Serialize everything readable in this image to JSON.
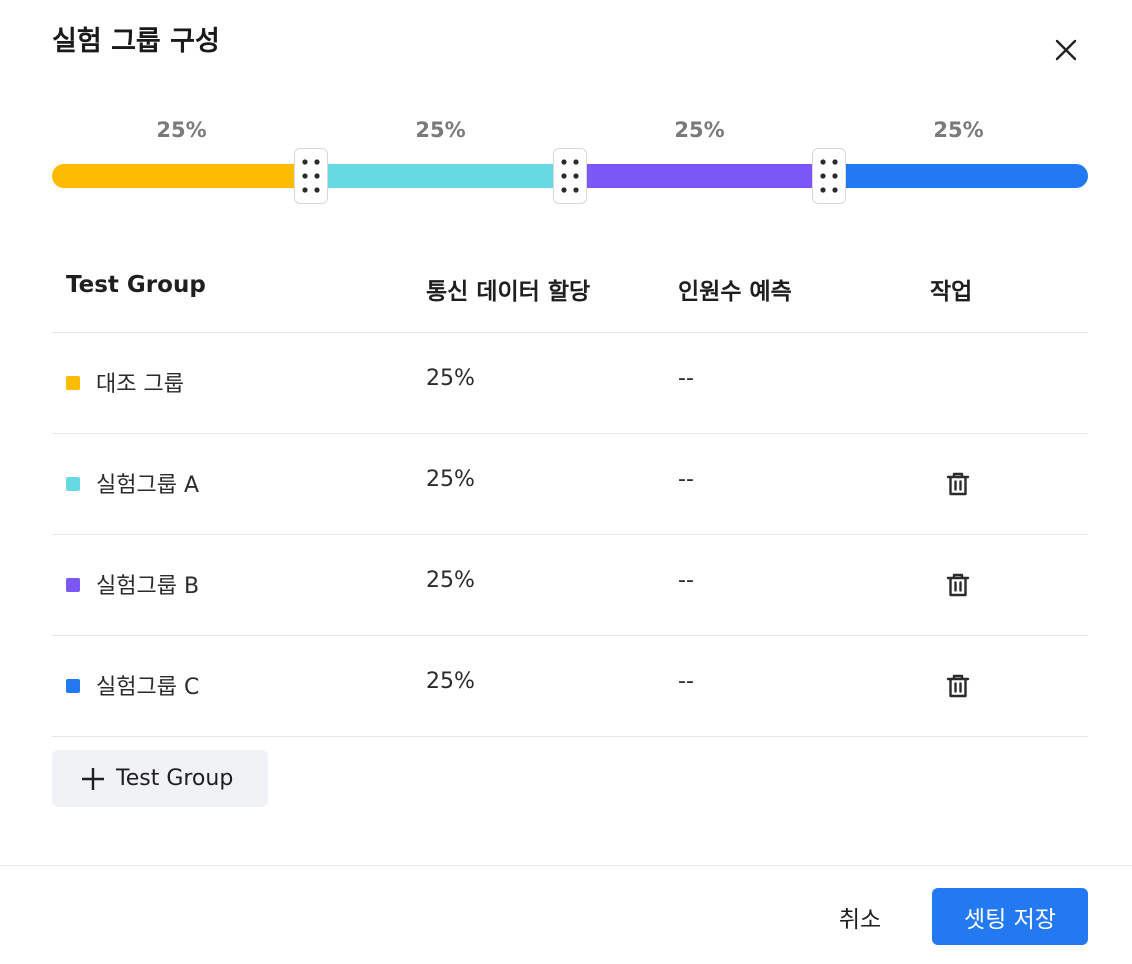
{
  "dialog": {
    "title": "실험 그룹 구성",
    "close_icon": "close-icon"
  },
  "allocation": {
    "segments": [
      {
        "label": "25%",
        "value": 25,
        "color": "#FFBB00"
      },
      {
        "label": "25%",
        "value": 25,
        "color": "#66D9E2"
      },
      {
        "label": "25%",
        "value": 25,
        "color": "#7B57F7"
      },
      {
        "label": "25%",
        "value": 25,
        "color": "#2279F2"
      }
    ],
    "handle_icon": "drag-handle-icon"
  },
  "table": {
    "headers": {
      "group": "Test Group",
      "traffic": "통신 데이터 할당",
      "estimate": "인원수 예측",
      "action": "작업"
    },
    "rows": [
      {
        "name": "대조 그룹",
        "traffic": "25%",
        "estimate": "--",
        "color": "#FFBB00",
        "deletable": false
      },
      {
        "name": "실험그룹 A",
        "traffic": "25%",
        "estimate": "--",
        "color": "#66D9E2",
        "deletable": true
      },
      {
        "name": "실험그룹 B",
        "traffic": "25%",
        "estimate": "--",
        "color": "#7B57F7",
        "deletable": true
      },
      {
        "name": "실험그룹 C",
        "traffic": "25%",
        "estimate": "--",
        "color": "#2279F2",
        "deletable": true
      }
    ],
    "delete_icon": "trash-icon"
  },
  "add_button": {
    "label": "Test Group",
    "icon": "plus-icon"
  },
  "footer": {
    "cancel_label": "취소",
    "save_label": "셋팅 저장"
  }
}
